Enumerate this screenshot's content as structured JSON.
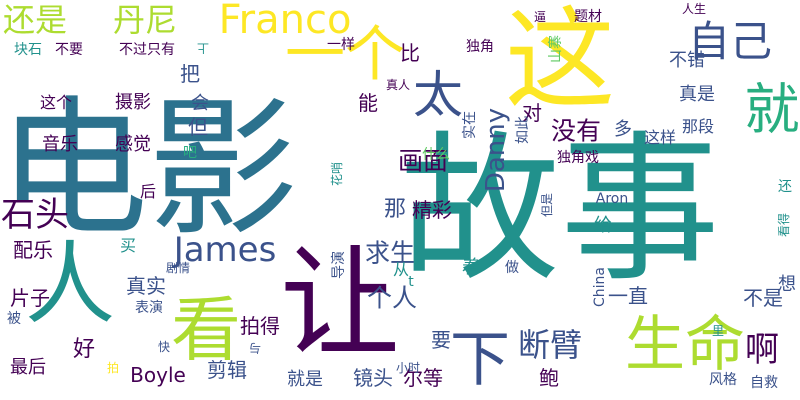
{
  "palette": {
    "dark_purple": "#440154",
    "indigo": "#3b528b",
    "blue_teal": "#2c728e",
    "teal": "#21918c",
    "green_teal": "#28ae80",
    "green": "#5ec962",
    "lime": "#addc30",
    "yellow": "#fde725"
  },
  "words": [
    {
      "text": "电影",
      "color": "#2c728e"
    },
    {
      "text": "故事",
      "color": "#21918c"
    },
    {
      "text": "这",
      "color": "#fde725"
    },
    {
      "text": "一个",
      "color": "#fde725"
    },
    {
      "text": "让",
      "color": "#440154"
    },
    {
      "text": "人",
      "color": "#21918c"
    },
    {
      "text": "看",
      "color": "#addc30"
    },
    {
      "text": "太",
      "color": "#3b528b"
    },
    {
      "text": "就",
      "color": "#28ae80"
    },
    {
      "text": "自己",
      "color": "#3b528b"
    },
    {
      "text": "生命",
      "color": "#addc30"
    },
    {
      "text": "Franco",
      "color": "#fde725"
    },
    {
      "text": "丹尼",
      "color": "#addc30"
    },
    {
      "text": "还是",
      "color": "#addc30"
    },
    {
      "text": "James",
      "color": "#3b528b"
    },
    {
      "text": "石头",
      "color": "#440154"
    },
    {
      "text": "下",
      "color": "#3b528b"
    },
    {
      "text": "断臂",
      "color": "#3b528b"
    },
    {
      "text": "啊",
      "color": "#440154"
    },
    {
      "text": "画面",
      "color": "#440154"
    },
    {
      "text": "没有",
      "color": "#440154"
    },
    {
      "text": "Danny",
      "color": "#3b528b"
    },
    {
      "text": "个人",
      "color": "#3b528b"
    },
    {
      "text": "求生",
      "color": "#3b528b"
    },
    {
      "text": "那",
      "color": "#3b528b"
    },
    {
      "text": "精彩",
      "color": "#440154"
    },
    {
      "text": "能",
      "color": "#440154"
    },
    {
      "text": "把",
      "color": "#3b528b"
    },
    {
      "text": "音乐",
      "color": "#440154"
    },
    {
      "text": "感觉",
      "color": "#440154"
    },
    {
      "text": "摄影",
      "color": "#440154"
    },
    {
      "text": "这个",
      "color": "#440154"
    },
    {
      "text": "配乐",
      "color": "#440154"
    },
    {
      "text": "好",
      "color": "#440154"
    },
    {
      "text": "片子",
      "color": "#440154"
    },
    {
      "text": "真实",
      "color": "#3b528b"
    },
    {
      "text": "拍得",
      "color": "#440154"
    },
    {
      "text": "剪辑",
      "color": "#3b528b"
    },
    {
      "text": "Boyle",
      "color": "#440154"
    },
    {
      "text": "镜头",
      "color": "#3b528b"
    },
    {
      "text": "尔等",
      "color": "#440154"
    },
    {
      "text": "鲍",
      "color": "#440154"
    },
    {
      "text": "就是",
      "color": "#3b528b"
    },
    {
      "text": "不是",
      "color": "#3b528b"
    },
    {
      "text": "一直",
      "color": "#3b528b"
    },
    {
      "text": "要",
      "color": "#3b528b"
    },
    {
      "text": "着",
      "color": "#21918c"
    },
    {
      "text": "给",
      "color": "#21918c"
    },
    {
      "text": "多",
      "color": "#3b528b"
    },
    {
      "text": "对",
      "color": "#440154"
    },
    {
      "text": "比",
      "color": "#440154"
    },
    {
      "text": "不错",
      "color": "#3b528b"
    },
    {
      "text": "真是",
      "color": "#3b528b"
    },
    {
      "text": "那段",
      "color": "#3b528b"
    },
    {
      "text": "这样",
      "color": "#3b528b"
    },
    {
      "text": "独角戏",
      "color": "#440154"
    },
    {
      "text": "独角",
      "color": "#440154"
    },
    {
      "text": "如此",
      "color": "#3b528b"
    },
    {
      "text": "实在",
      "color": "#3b528b"
    },
    {
      "text": "什么",
      "color": "#5ec962"
    },
    {
      "text": "山寨",
      "color": "#5ec962"
    },
    {
      "text": "题材",
      "color": "#440154"
    },
    {
      "text": "逼",
      "color": "#440154"
    },
    {
      "text": "一样",
      "color": "#440154"
    },
    {
      "text": "真人",
      "color": "#440154"
    },
    {
      "text": "人生",
      "color": "#440154"
    },
    {
      "text": "块石",
      "color": "#21918c"
    },
    {
      "text": "不要",
      "color": "#440154"
    },
    {
      "text": "不过只有",
      "color": "#440154"
    },
    {
      "text": "上",
      "color": "#21918c"
    },
    {
      "text": "会",
      "color": "#3b528b"
    },
    {
      "text": "但",
      "color": "#3b528b"
    },
    {
      "text": "吧",
      "color": "#28ae80"
    },
    {
      "text": "后",
      "color": "#440154"
    },
    {
      "text": "花哨",
      "color": "#21918c"
    },
    {
      "text": "Aron",
      "color": "#3b528b"
    },
    {
      "text": "还",
      "color": "#21918c"
    },
    {
      "text": "看得",
      "color": "#21918c"
    },
    {
      "text": "但是",
      "color": "#3b528b"
    },
    {
      "text": "China",
      "color": "#3b528b"
    },
    {
      "text": "做",
      "color": "#3b528b"
    },
    {
      "text": "从",
      "color": "#21918c"
    },
    {
      "text": "t",
      "color": "#21918c"
    },
    {
      "text": "导演",
      "color": "#3b528b"
    },
    {
      "text": "剧情",
      "color": "#3b528b"
    },
    {
      "text": "买",
      "color": "#21918c"
    },
    {
      "text": "表演",
      "color": "#3b528b"
    },
    {
      "text": "被",
      "color": "#3b528b"
    },
    {
      "text": "与",
      "color": "#3b528b"
    },
    {
      "text": "快",
      "color": "#3b528b"
    },
    {
      "text": "拍",
      "color": "#fde725"
    },
    {
      "text": "小时",
      "color": "#3b528b"
    },
    {
      "text": "最后",
      "color": "#440154"
    },
    {
      "text": "想",
      "color": "#3b528b"
    },
    {
      "text": "里",
      "color": "#21918c"
    },
    {
      "text": "风格",
      "color": "#3b528b"
    },
    {
      "text": "自救",
      "color": "#3b528b"
    }
  ]
}
